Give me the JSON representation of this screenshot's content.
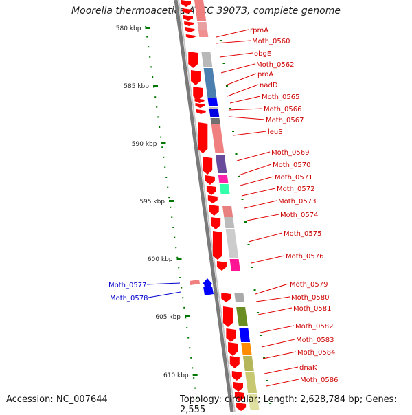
{
  "title": "Moorella thermoacetica ATCC 39073, complete genome",
  "footer": {
    "accession_label": "Accession:",
    "accession": "NC_007644",
    "topology_label": "Topology:",
    "topology": "circular",
    "length_label": "Length:",
    "length": "2,628,784 bp",
    "genes_label": "Genes:",
    "genes": "2,555"
  },
  "scale_labels": [
    "580 kbp",
    "585 kbp",
    "590 kbp",
    "595 kbp",
    "600 kbp",
    "605 kbp",
    "610 kbp"
  ],
  "colors": {
    "forward_gene": "#ff0000",
    "reverse_gene": "#0000ff",
    "forward_label": "#cc0000",
    "reverse_label": "#0000cc",
    "backbone": "#808080",
    "tick": "#007700"
  },
  "forward_genes": [
    "rpmA",
    "Moth_0560",
    "obgE",
    "Moth_0562",
    "proA",
    "nadD",
    "Moth_0565",
    "Moth_0566",
    "Moth_0567",
    "leuS",
    "Moth_0569",
    "Moth_0570",
    "Moth_0571",
    "Moth_0572",
    "Moth_0573",
    "Moth_0574",
    "Moth_0575",
    "Moth_0576",
    "Moth_0579",
    "Moth_0580",
    "Moth_0581",
    "Moth_0582",
    "Moth_0583",
    "Moth_0584",
    "dnaK",
    "Moth_0586"
  ],
  "reverse_genes": [
    "Moth_0577",
    "Moth_0578"
  ]
}
